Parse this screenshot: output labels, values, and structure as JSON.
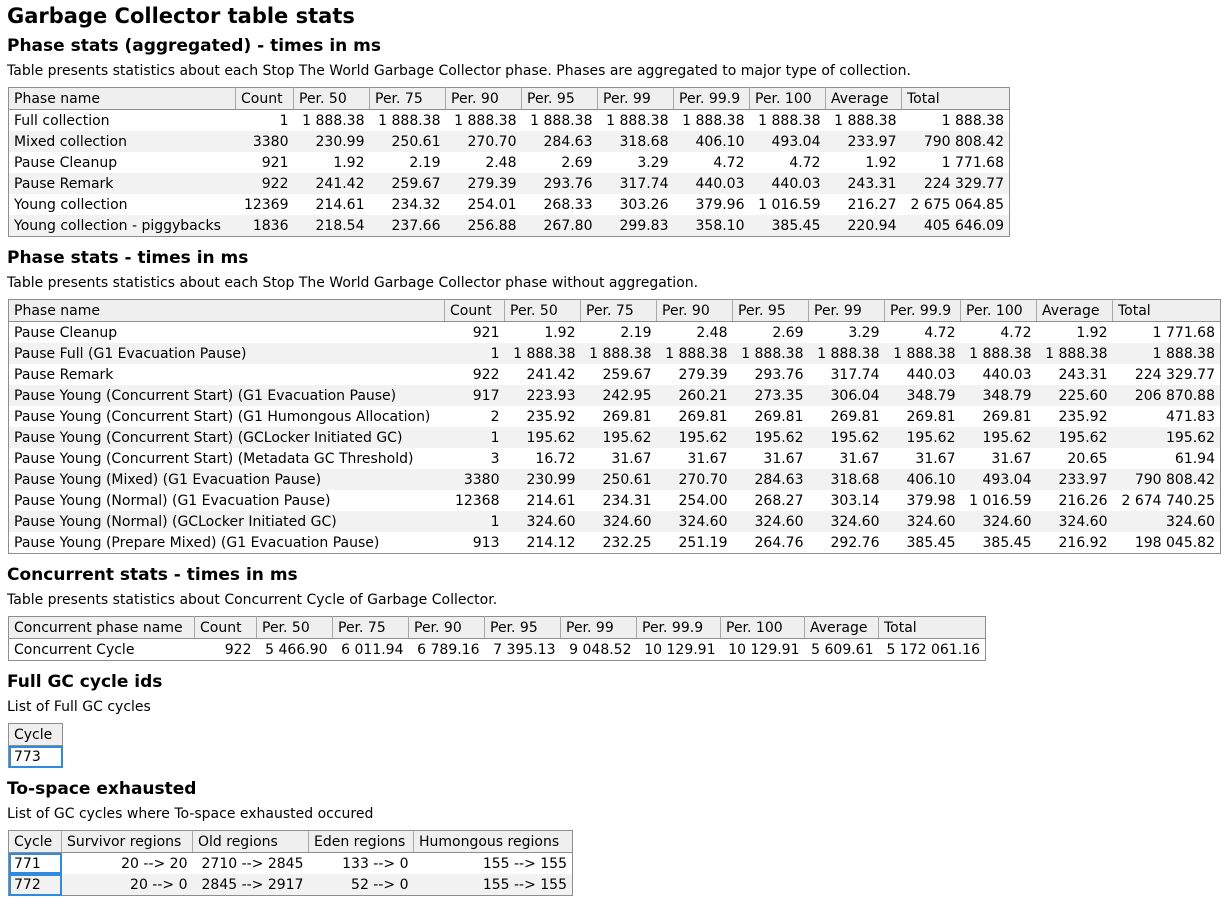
{
  "title": "Garbage Collector table stats",
  "phase_agg": {
    "heading": "Phase stats (aggregated) - times in ms",
    "description": "Table presents statistics about each Stop The World Garbage Collector phase. Phases are aggregated to major type of collection.",
    "columns": [
      "Phase name",
      "Count",
      "Per. 50",
      "Per. 75",
      "Per. 90",
      "Per. 95",
      "Per. 99",
      "Per. 99.9",
      "Per. 100",
      "Average",
      "Total"
    ],
    "rows": [
      [
        "Full collection",
        "1",
        "1 888.38",
        "1 888.38",
        "1 888.38",
        "1 888.38",
        "1 888.38",
        "1 888.38",
        "1 888.38",
        "1 888.38",
        "1 888.38"
      ],
      [
        "Mixed collection",
        "3380",
        "230.99",
        "250.61",
        "270.70",
        "284.63",
        "318.68",
        "406.10",
        "493.04",
        "233.97",
        "790 808.42"
      ],
      [
        "Pause Cleanup",
        "921",
        "1.92",
        "2.19",
        "2.48",
        "2.69",
        "3.29",
        "4.72",
        "4.72",
        "1.92",
        "1 771.68"
      ],
      [
        "Pause Remark",
        "922",
        "241.42",
        "259.67",
        "279.39",
        "293.76",
        "317.74",
        "440.03",
        "440.03",
        "243.31",
        "224 329.77"
      ],
      [
        "Young collection",
        "12369",
        "214.61",
        "234.32",
        "254.01",
        "268.33",
        "303.26",
        "379.96",
        "1 016.59",
        "216.27",
        "2 675 064.85"
      ],
      [
        "Young collection - piggybacks",
        "1836",
        "218.54",
        "237.66",
        "256.88",
        "267.80",
        "299.83",
        "358.10",
        "385.45",
        "220.94",
        "405 646.09"
      ]
    ]
  },
  "phase": {
    "heading": "Phase stats - times in ms",
    "description": "Table presents statistics about each Stop The World Garbage Collector phase without aggregation.",
    "columns": [
      "Phase name",
      "Count",
      "Per. 50",
      "Per. 75",
      "Per. 90",
      "Per. 95",
      "Per. 99",
      "Per. 99.9",
      "Per. 100",
      "Average",
      "Total"
    ],
    "rows": [
      [
        "Pause Cleanup",
        "921",
        "1.92",
        "2.19",
        "2.48",
        "2.69",
        "3.29",
        "4.72",
        "4.72",
        "1.92",
        "1 771.68"
      ],
      [
        "Pause Full (G1 Evacuation Pause)",
        "1",
        "1 888.38",
        "1 888.38",
        "1 888.38",
        "1 888.38",
        "1 888.38",
        "1 888.38",
        "1 888.38",
        "1 888.38",
        "1 888.38"
      ],
      [
        "Pause Remark",
        "922",
        "241.42",
        "259.67",
        "279.39",
        "293.76",
        "317.74",
        "440.03",
        "440.03",
        "243.31",
        "224 329.77"
      ],
      [
        "Pause Young (Concurrent Start) (G1 Evacuation Pause)",
        "917",
        "223.93",
        "242.95",
        "260.21",
        "273.35",
        "306.04",
        "348.79",
        "348.79",
        "225.60",
        "206 870.88"
      ],
      [
        "Pause Young (Concurrent Start) (G1 Humongous Allocation)",
        "2",
        "235.92",
        "269.81",
        "269.81",
        "269.81",
        "269.81",
        "269.81",
        "269.81",
        "235.92",
        "471.83"
      ],
      [
        "Pause Young (Concurrent Start) (GCLocker Initiated GC)",
        "1",
        "195.62",
        "195.62",
        "195.62",
        "195.62",
        "195.62",
        "195.62",
        "195.62",
        "195.62",
        "195.62"
      ],
      [
        "Pause Young (Concurrent Start) (Metadata GC Threshold)",
        "3",
        "16.72",
        "31.67",
        "31.67",
        "31.67",
        "31.67",
        "31.67",
        "31.67",
        "20.65",
        "61.94"
      ],
      [
        "Pause Young (Mixed) (G1 Evacuation Pause)",
        "3380",
        "230.99",
        "250.61",
        "270.70",
        "284.63",
        "318.68",
        "406.10",
        "493.04",
        "233.97",
        "790 808.42"
      ],
      [
        "Pause Young (Normal) (G1 Evacuation Pause)",
        "12368",
        "214.61",
        "234.31",
        "254.00",
        "268.27",
        "303.14",
        "379.98",
        "1 016.59",
        "216.26",
        "2 674 740.25"
      ],
      [
        "Pause Young (Normal) (GCLocker Initiated GC)",
        "1",
        "324.60",
        "324.60",
        "324.60",
        "324.60",
        "324.60",
        "324.60",
        "324.60",
        "324.60",
        "324.60"
      ],
      [
        "Pause Young (Prepare Mixed) (G1 Evacuation Pause)",
        "913",
        "214.12",
        "232.25",
        "251.19",
        "264.76",
        "292.76",
        "385.45",
        "385.45",
        "216.92",
        "198 045.82"
      ]
    ]
  },
  "concurrent": {
    "heading": "Concurrent stats - times in ms",
    "description": "Table presents statistics about Concurrent Cycle of Garbage Collector.",
    "columns": [
      "Concurrent phase name",
      "Count",
      "Per. 50",
      "Per. 75",
      "Per. 90",
      "Per. 95",
      "Per. 99",
      "Per. 99.9",
      "Per. 100",
      "Average",
      "Total"
    ],
    "rows": [
      [
        "Concurrent Cycle",
        "922",
        "5 466.90",
        "6 011.94",
        "6 789.16",
        "7 395.13",
        "9 048.52",
        "10 129.91",
        "10 129.91",
        "5 609.61",
        "5 172 061.16"
      ]
    ]
  },
  "full_gc": {
    "heading": "Full GC cycle ids",
    "description": "List of Full GC cycles",
    "columns": [
      "Cycle"
    ],
    "rows": [
      [
        "773"
      ]
    ]
  },
  "to_space": {
    "heading": "To-space exhausted",
    "description": "List of GC cycles where To-space exhausted occured",
    "columns": [
      "Cycle",
      "Survivor regions",
      "Old regions",
      "Eden regions",
      "Humongous regions"
    ],
    "rows": [
      [
        "771",
        "20 --> 20",
        "2710 --> 2845",
        "133 --> 0",
        "155 --> 155"
      ],
      [
        "772",
        "20 --> 0",
        "2845 --> 2917",
        "52 --> 0",
        "155 --> 155"
      ]
    ]
  }
}
